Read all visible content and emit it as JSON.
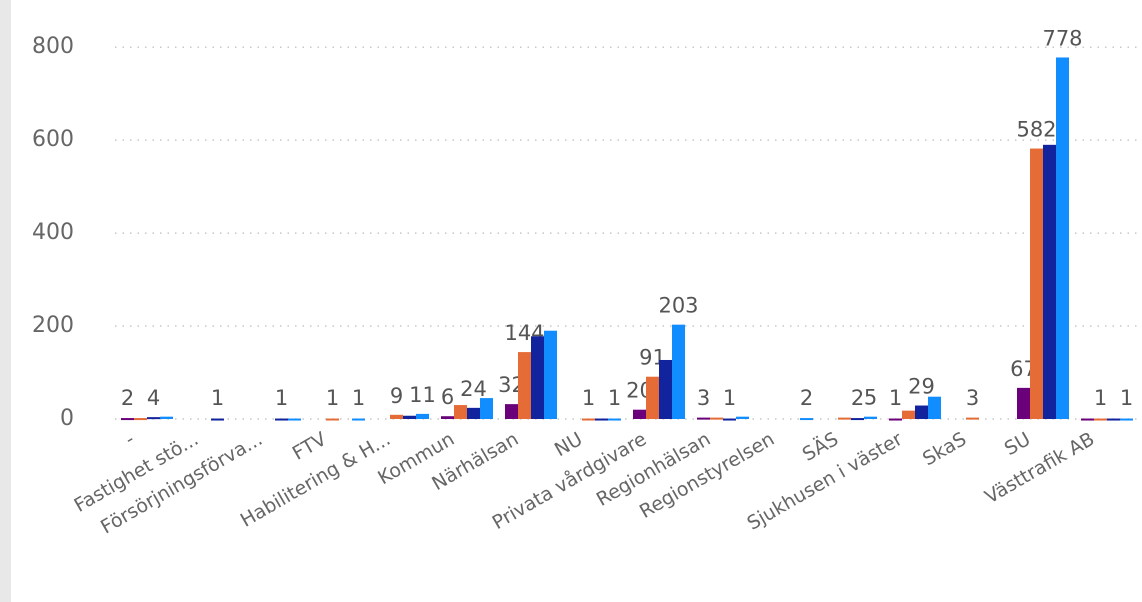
{
  "chart_data": {
    "type": "bar",
    "categories": [
      "-",
      "Fastighet stö...",
      "Försörjningsförva...",
      "FTV",
      "Habilitering & H...",
      "Kommun",
      "Närhälsan",
      "NU",
      "Privata vårdgivare",
      "Regionhälsan",
      "Regionstyrelsen",
      "SÄS",
      "Sjukhusen i väster",
      "SkaS",
      "SU",
      "Västtrafik AB"
    ],
    "series": [
      {
        "color": "#6B007B",
        "values": [
          2,
          null,
          null,
          null,
          null,
          6,
          32,
          null,
          20,
          3,
          null,
          null,
          1,
          null,
          67,
          1
        ],
        "value_labels": [
          "2",
          null,
          null,
          null,
          null,
          "6",
          "32",
          null,
          "20",
          "3",
          null,
          null,
          "1",
          null,
          "67",
          null
        ]
      },
      {
        "color": "#E66C37",
        "values": [
          2,
          null,
          null,
          1,
          9,
          30,
          144,
          1,
          91,
          3,
          null,
          3,
          18,
          3,
          582,
          1
        ],
        "value_labels": [
          null,
          null,
          null,
          "1",
          "9",
          null,
          "144",
          "1",
          "91",
          null,
          null,
          null,
          null,
          "3",
          "582",
          "1"
        ]
      },
      {
        "color": "#12239E",
        "values": [
          4,
          1,
          1,
          null,
          7,
          24,
          178,
          1,
          127,
          1,
          null,
          2,
          29,
          null,
          590,
          1
        ],
        "value_labels": [
          "4",
          "1",
          "1",
          null,
          null,
          "24",
          null,
          null,
          null,
          "1",
          null,
          "2",
          "29",
          null,
          null,
          null
        ]
      },
      {
        "color": "#118DFF",
        "values": [
          5,
          null,
          1,
          1,
          11,
          45,
          190,
          1,
          203,
          5,
          2,
          5,
          48,
          null,
          778,
          1
        ],
        "value_labels": [
          null,
          null,
          null,
          "1",
          "11",
          null,
          null,
          "1",
          "203",
          null,
          "2",
          "5",
          null,
          null,
          "778",
          "1"
        ]
      }
    ],
    "ylim": [
      0,
      850
    ],
    "yticks": [
      0,
      200,
      400,
      600,
      800
    ],
    "grid": true
  }
}
